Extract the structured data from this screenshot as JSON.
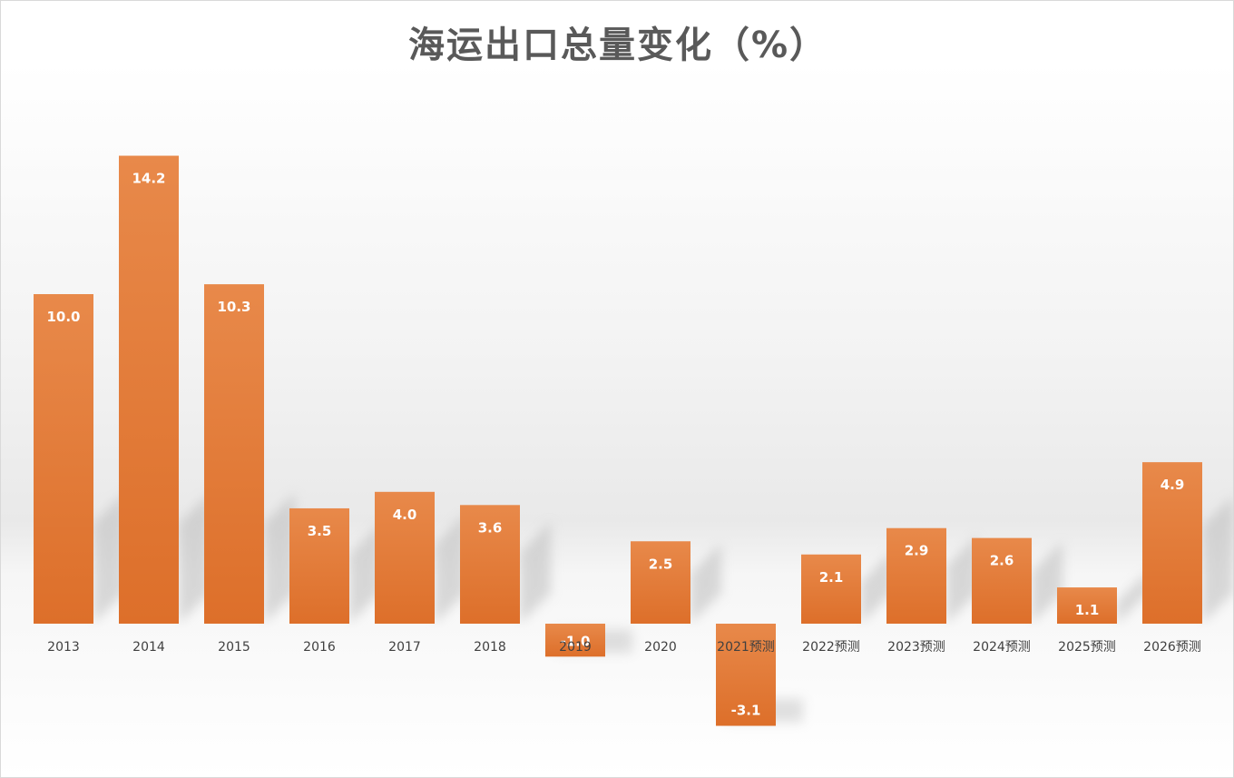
{
  "chart_data": {
    "type": "bar",
    "title": "海运出口总量变化（%）",
    "xlabel": "",
    "ylabel": "",
    "categories": [
      "2013",
      "2014",
      "2015",
      "2016",
      "2017",
      "2018",
      "2019",
      "2020",
      "2021预测",
      "2022预测",
      "2023预测",
      "2024预测",
      "2025预测",
      "2026预测"
    ],
    "values": [
      10.0,
      14.2,
      10.3,
      3.5,
      4.0,
      3.6,
      -1.0,
      2.5,
      -3.1,
      2.1,
      2.9,
      2.6,
      1.1,
      4.9
    ],
    "data_labels": [
      "10.0",
      "14.2",
      "10.3",
      "3.5",
      "4.0",
      "3.6",
      "-1.0",
      "2.5",
      "-3.1",
      "2.1",
      "2.9",
      "2.6",
      "1.1",
      "4.9"
    ],
    "ylim": [
      -4,
      16
    ],
    "grid": false,
    "legend": "none",
    "colors": {
      "bar_top": "#e8894a",
      "bar_bottom": "#dd6f2a",
      "shadow": "#bdbdbd"
    }
  }
}
